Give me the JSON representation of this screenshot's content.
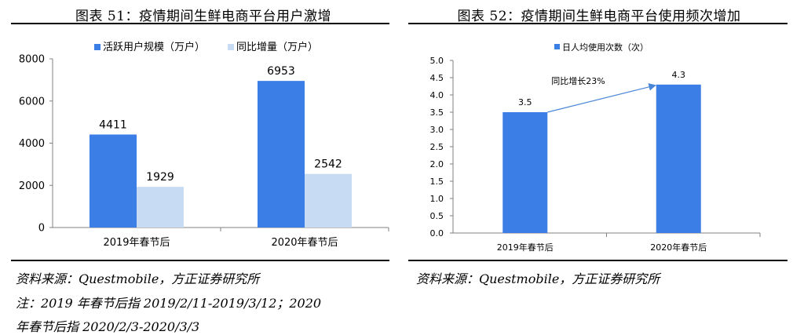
{
  "left_panel": {
    "title": "图表 51：疫情期间生鲜电商平台用户激增",
    "source": "资料来源：Questmobile，方正证券研究所",
    "note_line1": "注：2019 年春节后指 2019/2/11-2019/3/12；2020",
    "note_line2": "年春节后指 2020/2/3-2020/3/3"
  },
  "right_panel": {
    "title": "图表 52：疫情期间生鲜电商平台使用频次增加",
    "source": "资料来源：Questmobile，方正证券研究所"
  },
  "colors": {
    "series1": "#3b7fe6",
    "series2": "#c7dbf3",
    "arrow": "#4a86d8",
    "axis": "#808080"
  },
  "chart_data": [
    {
      "type": "bar",
      "title": "图表 51：疫情期间生鲜电商平台用户激增",
      "categories": [
        "2019年春节后",
        "2020年春节后"
      ],
      "series": [
        {
          "name": "活跃用户规模（万户）",
          "values": [
            4411,
            6953
          ]
        },
        {
          "name": "同比增量（万户）",
          "values": [
            1929,
            2542
          ]
        }
      ],
      "ylim": [
        0,
        8000
      ],
      "yticks": [
        "0",
        "2000",
        "4000",
        "6000",
        "8000"
      ],
      "xlabel": "",
      "ylabel": "",
      "grid": false,
      "legend": "top-center"
    },
    {
      "type": "bar",
      "title": "图表 52：疫情期间生鲜电商平台使用频次增加",
      "categories": [
        "2019年春节后",
        "2020年春节后"
      ],
      "series": [
        {
          "name": "日人均使用次数（次）",
          "values": [
            3.5,
            4.3
          ]
        }
      ],
      "ylim": [
        0,
        5
      ],
      "yticks": [
        "0.0",
        "0.5",
        "1.0",
        "1.5",
        "2.0",
        "2.5",
        "3.0",
        "3.5",
        "4.0",
        "4.5",
        "5.0"
      ],
      "annotations": [
        "同比增长23%"
      ],
      "xlabel": "",
      "ylabel": "",
      "grid": false,
      "legend": "top-center"
    }
  ]
}
